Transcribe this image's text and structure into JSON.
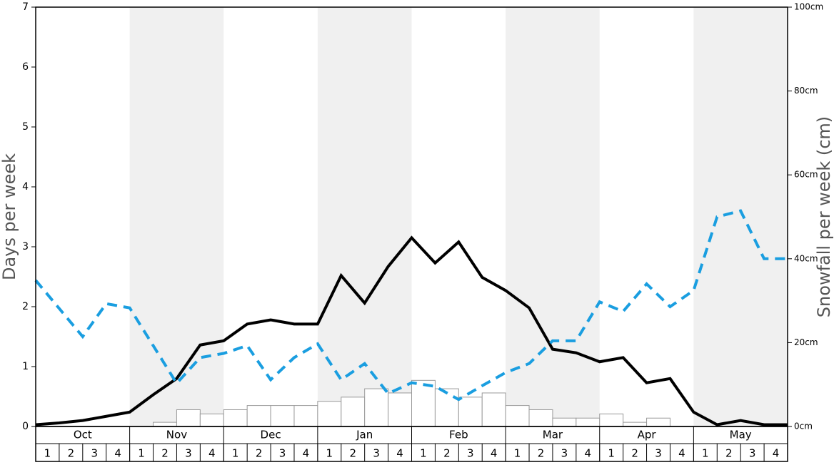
{
  "chart_data": {
    "type": "combo",
    "y_label": "Days per week",
    "y2_label": "Snowfall per week (cm)",
    "months": [
      "Oct",
      "Nov",
      "Dec",
      "Jan",
      "Feb",
      "Mar",
      "Apr",
      "May"
    ],
    "categories": [
      "1",
      "2",
      "3",
      "4",
      "1",
      "2",
      "3",
      "4",
      "1",
      "2",
      "3",
      "4",
      "1",
      "2",
      "3",
      "4",
      "1",
      "2",
      "3",
      "4",
      "1",
      "2",
      "3",
      "4",
      "1",
      "2",
      "3",
      "4",
      "1",
      "2",
      "3",
      "4"
    ],
    "x": [
      0,
      1,
      2,
      3,
      4,
      5,
      6,
      7,
      8,
      9,
      10,
      11,
      12,
      13,
      14,
      15,
      16,
      17,
      18,
      19,
      20,
      21,
      22,
      23,
      24,
      25,
      26,
      27,
      28,
      29,
      30,
      31,
      32
    ],
    "xlim": [
      0,
      32
    ],
    "ylim": [
      0,
      7
    ],
    "yticks": [
      0,
      1,
      2,
      3,
      4,
      5,
      6,
      7
    ],
    "y2lim": [
      0,
      100
    ],
    "y2ticks": [
      {
        "value": 0,
        "label": "0cm"
      },
      {
        "value": 20,
        "label": "20cm"
      },
      {
        "value": 40,
        "label": "40cm"
      },
      {
        "value": 60,
        "label": "60cm"
      },
      {
        "value": 80,
        "label": "80cm"
      },
      {
        "value": 100,
        "label": "100cm"
      }
    ],
    "shade_color": "#f0f0f0",
    "series": [
      {
        "type": "bar",
        "axis": "y2",
        "color": "#ffffff",
        "values": [
          0,
          0,
          0,
          0,
          0,
          1,
          4,
          3,
          4,
          5,
          5,
          5,
          6,
          7,
          9,
          8,
          11,
          9,
          7,
          8,
          5,
          4,
          2,
          2,
          3,
          1,
          2,
          0,
          0,
          0,
          0,
          0
        ]
      },
      {
        "type": "line",
        "color": "#000000",
        "dashed": false,
        "values": [
          0.03,
          0.06,
          0.1,
          0.17,
          0.24,
          0.53,
          0.8,
          1.36,
          1.43,
          1.71,
          1.78,
          1.71,
          1.71,
          2.52,
          2.06,
          2.67,
          3.15,
          2.73,
          3.08,
          2.49,
          2.27,
          1.98,
          1.29,
          1.23,
          1.08,
          1.15,
          0.73,
          0.8,
          0.24,
          0.03,
          0.1,
          0.03,
          0.03
        ]
      },
      {
        "type": "line",
        "color": "#1a9ee0",
        "dashed": true,
        "values": [
          2.44,
          1.97,
          1.5,
          2.05,
          1.98,
          1.35,
          0.72,
          1.15,
          1.22,
          1.35,
          0.78,
          1.15,
          1.38,
          0.78,
          1.05,
          0.55,
          0.73,
          0.67,
          0.45,
          0.68,
          0.9,
          1.05,
          1.43,
          1.43,
          2.08,
          1.92,
          2.38,
          2.0,
          2.27,
          3.5,
          3.6,
          2.8,
          2.8
        ]
      }
    ]
  }
}
